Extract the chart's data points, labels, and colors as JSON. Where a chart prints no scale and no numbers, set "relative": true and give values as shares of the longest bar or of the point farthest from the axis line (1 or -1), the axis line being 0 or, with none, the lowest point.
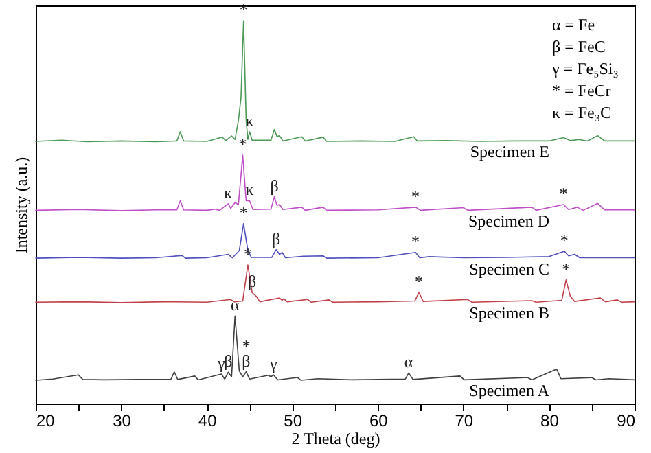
{
  "chart_data": {
    "type": "line",
    "relative": true,
    "xlabel": "2 Theta (deg)",
    "ylabel": "Intensity (a.u.)",
    "tick_labels": "x",
    "xlim": [
      20,
      90
    ],
    "xticks": [
      20,
      {
        "value": 25,
        "label": null
      },
      30,
      {
        "value": 35,
        "label": null
      },
      40,
      {
        "value": 45,
        "label": null
      },
      50,
      {
        "value": 55,
        "label": null
      },
      60,
      {
        "value": 65,
        "label": null
      },
      70,
      {
        "value": 75,
        "label": null
      },
      80,
      {
        "value": 85,
        "label": null
      },
      90
    ],
    "series": [
      {
        "name": "Specimen E",
        "color": "#4c9a56",
        "x": [
          20,
          23,
          26,
          30,
          34,
          36.5,
          36.9,
          37.3,
          40,
          41.8,
          42.2,
          42.9,
          43.3,
          43.7,
          44.0,
          44.3,
          44.6,
          44.8,
          45.0,
          45.3,
          47.5,
          47.9,
          48.2,
          48.5,
          48.9,
          51.1,
          51.5,
          53.6,
          54.0,
          58,
          62,
          64.2,
          64.6,
          68,
          72,
          76,
          80,
          81.7,
          82.5,
          83.5,
          84.5,
          85.7,
          86.5,
          90
        ],
        "values": [
          0.685,
          0.688,
          0.684,
          0.686,
          0.684,
          0.686,
          0.71,
          0.686,
          0.685,
          0.696,
          0.687,
          0.699,
          0.69,
          0.74,
          0.8,
          1.0,
          0.74,
          0.69,
          0.71,
          0.688,
          0.688,
          0.716,
          0.698,
          0.7,
          0.686,
          0.697,
          0.686,
          0.696,
          0.685,
          0.686,
          0.685,
          0.697,
          0.686,
          0.687,
          0.685,
          0.686,
          0.686,
          0.695,
          0.687,
          0.69,
          0.686,
          0.7,
          0.686,
          0.686
        ]
      },
      {
        "name": "Specimen D",
        "color": "#c04fc8",
        "x": [
          20,
          25,
          30,
          34,
          36.5,
          36.9,
          37.3,
          40,
          41,
          41.5,
          42.5,
          42.8,
          43.3,
          43.7,
          44.2,
          44.6,
          45.0,
          45.4,
          47.5,
          47.9,
          48.2,
          48.5,
          48.9,
          51.1,
          51.5,
          53.6,
          54,
          60,
          64.4,
          65,
          70,
          70.5,
          78,
          78.5,
          81.7,
          82.3,
          83.3,
          84,
          85.7,
          86.5,
          90
        ],
        "values": [
          0.505,
          0.507,
          0.504,
          0.506,
          0.506,
          0.53,
          0.506,
          0.505,
          0.508,
          0.505,
          0.522,
          0.51,
          0.525,
          0.52,
          0.649,
          0.53,
          0.53,
          0.507,
          0.508,
          0.54,
          0.518,
          0.52,
          0.507,
          0.513,
          0.505,
          0.513,
          0.505,
          0.506,
          0.513,
          0.505,
          0.512,
          0.505,
          0.513,
          0.505,
          0.52,
          0.507,
          0.513,
          0.505,
          0.523,
          0.506,
          0.506
        ]
      },
      {
        "name": "Specimen C",
        "color": "#4f4fbf",
        "x": [
          20,
          25,
          30,
          34,
          37.1,
          37.5,
          40,
          42.5,
          43,
          43.8,
          44.3,
          44.8,
          45.2,
          47.6,
          48.1,
          48.5,
          48.8,
          49.2,
          51.3,
          53.6,
          54,
          60,
          64.4,
          64.9,
          66,
          70,
          75,
          80,
          81.8,
          82.3,
          83,
          83.6,
          90
        ],
        "values": [
          0.38,
          0.382,
          0.38,
          0.381,
          0.387,
          0.38,
          0.381,
          0.39,
          0.381,
          0.4,
          0.47,
          0.4,
          0.382,
          0.382,
          0.402,
          0.39,
          0.395,
          0.381,
          0.385,
          0.386,
          0.38,
          0.381,
          0.395,
          0.381,
          0.384,
          0.381,
          0.382,
          0.384,
          0.398,
          0.386,
          0.39,
          0.381,
          0.381
        ]
      },
      {
        "name": "Specimen B",
        "color": "#c0404a",
        "x": [
          20,
          25,
          30,
          35,
          40,
          42.8,
          43.2,
          44.2,
          44.8,
          45.3,
          45.8,
          46.2,
          48.5,
          48.8,
          49.0,
          49.4,
          51.8,
          52.2,
          54.3,
          54.7,
          60,
          64.3,
          64.8,
          65.3,
          70.5,
          71,
          78,
          78.5,
          81.5,
          82.0,
          82.5,
          83,
          86,
          86.6,
          88,
          88.5,
          90
        ],
        "values": [
          0.265,
          0.266,
          0.264,
          0.266,
          0.265,
          0.272,
          0.266,
          0.268,
          0.362,
          0.29,
          0.28,
          0.266,
          0.276,
          0.27,
          0.274,
          0.266,
          0.272,
          0.265,
          0.271,
          0.265,
          0.266,
          0.268,
          0.29,
          0.267,
          0.272,
          0.265,
          0.269,
          0.265,
          0.27,
          0.323,
          0.28,
          0.267,
          0.276,
          0.266,
          0.271,
          0.265,
          0.266
        ]
      },
      {
        "name": "Specimen A",
        "color": "#404040",
        "x": [
          20,
          22,
          25.0,
          25.5,
          28,
          32,
          35.8,
          36.2,
          36.6,
          38.6,
          39,
          41.7,
          42.1,
          42.5,
          42.9,
          43.3,
          43.8,
          44.2,
          44.6,
          45.0,
          47.2,
          47.5,
          47.8,
          48.3,
          50.6,
          51,
          53,
          57,
          63.2,
          63.6,
          64.1,
          69.6,
          70.1,
          77.5,
          78,
          80.9,
          81.4,
          85,
          85.5,
          87,
          90
        ],
        "values": [
          0.061,
          0.064,
          0.075,
          0.063,
          0.062,
          0.063,
          0.063,
          0.083,
          0.063,
          0.072,
          0.062,
          0.077,
          0.064,
          0.082,
          0.07,
          0.229,
          0.085,
          0.07,
          0.083,
          0.064,
          0.074,
          0.07,
          0.075,
          0.062,
          0.068,
          0.061,
          0.065,
          0.062,
          0.064,
          0.08,
          0.063,
          0.072,
          0.062,
          0.068,
          0.062,
          0.09,
          0.065,
          0.068,
          0.062,
          0.065,
          0.062
        ]
      }
    ],
    "annotations": [
      "α = Fe",
      "β = FeC",
      "γ = Fe₅Si₃",
      "* = FeCr",
      "κ = Fe₃C",
      {
        "text": "*",
        "x": 44.3,
        "y": 1.0
      },
      {
        "text": "κ",
        "x": 45.0,
        "y": 0.71
      },
      {
        "text": "*",
        "x": 44.2,
        "y": 0.649
      },
      {
        "text": "κ",
        "x": 42.5,
        "y": 0.522
      },
      {
        "text": "κ",
        "x": 45.0,
        "y": 0.53
      },
      {
        "text": "β",
        "x": 47.9,
        "y": 0.54
      },
      {
        "text": "*",
        "x": 64.4,
        "y": 0.513
      },
      {
        "text": "*",
        "x": 81.7,
        "y": 0.52
      },
      {
        "text": "*",
        "x": 44.3,
        "y": 0.47
      },
      {
        "text": "β",
        "x": 48.1,
        "y": 0.402
      },
      {
        "text": "*",
        "x": 64.4,
        "y": 0.395
      },
      {
        "text": "*",
        "x": 81.8,
        "y": 0.398
      },
      {
        "text": "*",
        "x": 44.8,
        "y": 0.362
      },
      {
        "text": "β",
        "x": 45.3,
        "y": 0.29
      },
      {
        "text": "*",
        "x": 64.8,
        "y": 0.29
      },
      {
        "text": "*",
        "x": 82.0,
        "y": 0.323
      },
      {
        "text": "α",
        "x": 43.3,
        "y": 0.229
      },
      {
        "text": "γ",
        "x": 41.7,
        "y": 0.077
      },
      {
        "text": "β",
        "x": 42.5,
        "y": 0.082
      },
      {
        "text": "β",
        "x": 44.6,
        "y": 0.083
      },
      {
        "text": "*",
        "x": 44.6,
        "y": 0.083
      },
      {
        "text": "γ",
        "x": 47.8,
        "y": 0.075
      },
      {
        "text": "α",
        "x": 63.6,
        "y": 0.08
      }
    ]
  }
}
